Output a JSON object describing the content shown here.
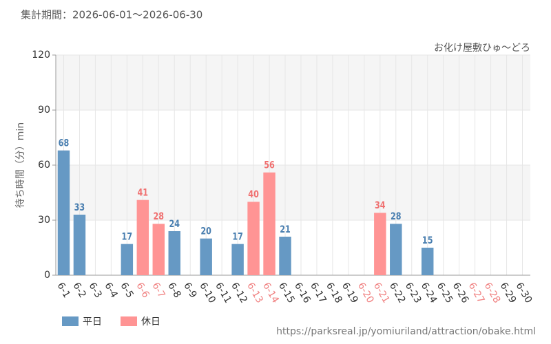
{
  "chart_data": {
    "type": "bar",
    "period": "集計期間：2026-06-01〜2026-06-30",
    "title": "お化け屋敷ひゅ〜どろ",
    "y_label": "待ち時間（分）min",
    "source": "https://parksreal.jp/yomiuriland/attraction/obake.html",
    "categories": [
      "6-1",
      "6-2",
      "6-3",
      "6-4",
      "6-5",
      "6-6",
      "6-7",
      "6-8",
      "6-9",
      "6-10",
      "6-11",
      "6-12",
      "6-13",
      "6-14",
      "6-15",
      "6-16",
      "6-17",
      "6-18",
      "6-19",
      "6-20",
      "6-21",
      "6-22",
      "6-23",
      "6-24",
      "6-25",
      "6-26",
      "6-27",
      "6-28",
      "6-29",
      "6-30"
    ],
    "category_colors": [
      "#333",
      "#333",
      "#333",
      "#333",
      "#333",
      "#f08080",
      "#f08080",
      "#333",
      "#333",
      "#333",
      "#333",
      "#333",
      "#f08080",
      "#f08080",
      "#333",
      "#333",
      "#333",
      "#333",
      "#333",
      "#f08080",
      "#f08080",
      "#333",
      "#333",
      "#333",
      "#333",
      "#333",
      "#f08080",
      "#f08080",
      "#333",
      "#333"
    ],
    "series": [
      {
        "name": "平日",
        "color": "#6699c4",
        "label_color": "#4a7fb0",
        "values": [
          68,
          33,
          null,
          null,
          17,
          null,
          null,
          24,
          null,
          20,
          null,
          17,
          null,
          null,
          21,
          null,
          null,
          null,
          null,
          null,
          null,
          28,
          null,
          15,
          null,
          null,
          null,
          null,
          null,
          null
        ]
      },
      {
        "name": "休日",
        "color": "#ff9494",
        "label_color": "#f07070",
        "values": [
          null,
          null,
          null,
          null,
          null,
          41,
          28,
          null,
          null,
          null,
          null,
          null,
          40,
          56,
          null,
          null,
          null,
          null,
          null,
          null,
          34,
          null,
          null,
          null,
          null,
          null,
          null,
          null,
          null,
          null
        ]
      }
    ],
    "ylim": [
      0,
      120
    ],
    "yticks": [
      0,
      30,
      60,
      90,
      120
    ],
    "grid": true
  }
}
